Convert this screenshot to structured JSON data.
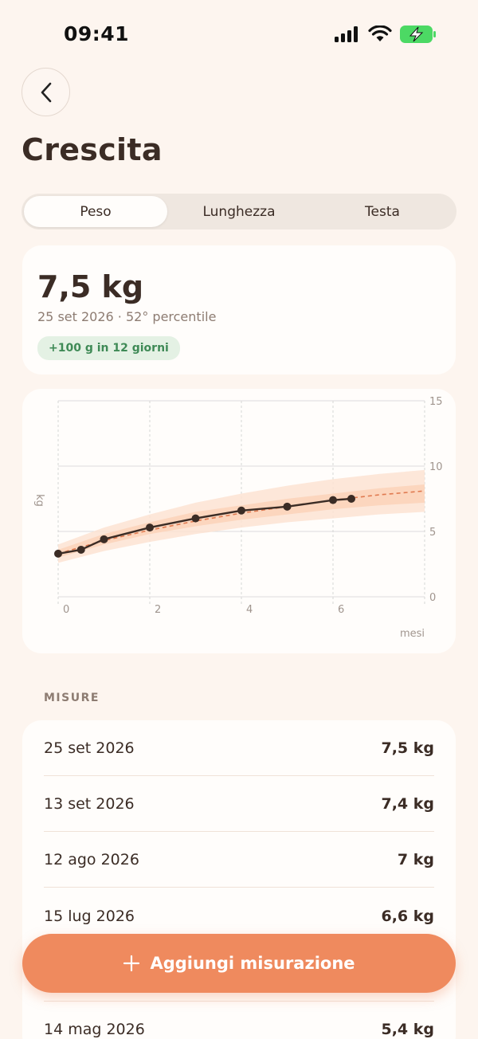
{
  "status_bar": {
    "time": "09:41"
  },
  "header": {
    "title": "Crescita"
  },
  "tabs": [
    {
      "label": "Peso",
      "active": true
    },
    {
      "label": "Lunghezza",
      "active": false
    },
    {
      "label": "Testa",
      "active": false
    }
  ],
  "summary": {
    "value": "7,5 kg",
    "subtitle": "25 set 2026 · 52° percentile",
    "badge": "+100 g in 12 giorni"
  },
  "chart_data": {
    "type": "line",
    "xlabel": "mesi",
    "ylabel": "kg",
    "xlim": [
      0,
      8
    ],
    "ylim": [
      0,
      15
    ],
    "x_ticks": [
      "0",
      "2",
      "4",
      "6"
    ],
    "y_ticks": [
      "0",
      "5",
      "10",
      "15"
    ],
    "series": [
      {
        "x": [
          0,
          0.5,
          1,
          2,
          3,
          4,
          5,
          6,
          6.4
        ],
        "y": [
          3.3,
          3.6,
          4.4,
          5.3,
          6.0,
          6.6,
          6.9,
          7.4,
          7.5
        ]
      }
    ],
    "trend": {
      "x": [
        0,
        1,
        2,
        3,
        4,
        5,
        6,
        7,
        8
      ],
      "y": [
        3.3,
        4.3,
        5.1,
        5.8,
        6.4,
        6.9,
        7.4,
        7.8,
        8.1
      ]
    },
    "percentile_band_outer": {
      "x": [
        0,
        1,
        2,
        3,
        4,
        5,
        6,
        7,
        8
      ],
      "low": [
        2.6,
        3.5,
        4.2,
        4.8,
        5.3,
        5.7,
        6.0,
        6.3,
        6.5
      ],
      "high": [
        4.0,
        5.3,
        6.3,
        7.2,
        7.9,
        8.5,
        9.0,
        9.4,
        9.7
      ]
    },
    "percentile_band_inner": {
      "x": [
        0,
        1,
        2,
        3,
        4,
        5,
        6,
        7,
        8
      ],
      "low": [
        3.0,
        4.0,
        4.8,
        5.4,
        5.9,
        6.3,
        6.7,
        7.0,
        7.2
      ],
      "high": [
        3.6,
        4.8,
        5.7,
        6.5,
        7.0,
        7.5,
        7.9,
        8.3,
        8.6
      ]
    },
    "colors": {
      "line": "#3b2c25",
      "trend": "#e07a50",
      "band_outer": "#fde3d2",
      "band_inner": "#fbd2b8"
    }
  },
  "measurements": {
    "section_label": "MISURE",
    "rows": [
      {
        "date": "25 set 2026",
        "value": "7,5 kg"
      },
      {
        "date": "13 set 2026",
        "value": "7,4 kg"
      },
      {
        "date": "12 ago 2026",
        "value": "7 kg"
      },
      {
        "date": "15 lug 2026",
        "value": "6,6 kg"
      },
      {
        "date": "",
        "value": ""
      },
      {
        "date": "14 mag 2026",
        "value": "5,4 kg"
      }
    ]
  },
  "add_button": {
    "label": "Aggiungi misurazione"
  },
  "colors": {
    "accent": "#ef8a5e",
    "background": "#fdf5ef",
    "text": "#3b2c25",
    "badge_bg": "#e4f1e4",
    "badge_text": "#3f8a56"
  }
}
